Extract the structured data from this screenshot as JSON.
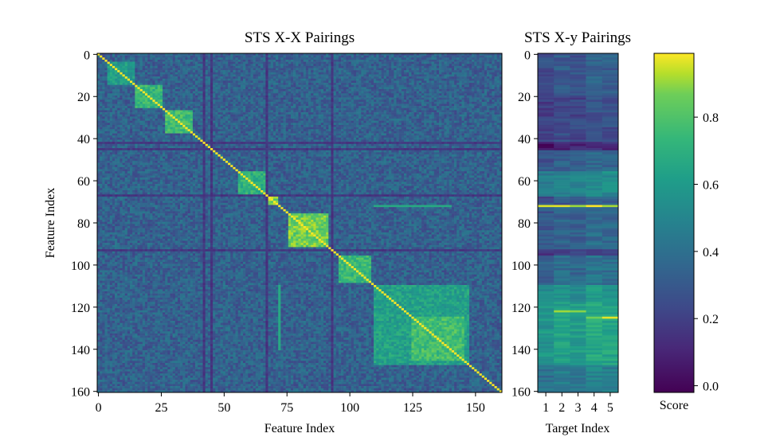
{
  "chart_data": [
    {
      "type": "heatmap",
      "title": "STS X-X Pairings",
      "xlabel": "Feature Index",
      "ylabel": "Feature Index",
      "xlim": [
        0,
        160
      ],
      "ylim": [
        160,
        0
      ],
      "x_ticks": [
        "0",
        "25",
        "50",
        "75",
        "100",
        "125",
        "150"
      ],
      "y_ticks": [
        "0",
        "20",
        "40",
        "60",
        "80",
        "100",
        "120",
        "140",
        "160"
      ],
      "n": 161,
      "diagonal_value": 1.0,
      "background_value": 0.35,
      "blocks": [
        {
          "start": 4,
          "end": 14,
          "value": 0.62
        },
        {
          "start": 15,
          "end": 25,
          "value": 0.74
        },
        {
          "start": 27,
          "end": 37,
          "value": 0.78
        },
        {
          "start": 56,
          "end": 66,
          "value": 0.72
        },
        {
          "start": 68,
          "end": 71,
          "value": 0.9
        },
        {
          "start": 76,
          "end": 91,
          "value": 0.86
        },
        {
          "start": 96,
          "end": 108,
          "value": 0.76
        },
        {
          "start": 110,
          "end": 147,
          "value": 0.64
        },
        {
          "start": 125,
          "end": 145,
          "value": 0.78
        }
      ],
      "dark_lines": [
        42,
        45,
        67,
        93
      ],
      "bright_columns": [
        {
          "index": 72,
          "start": 110,
          "end": 140,
          "value": 0.68
        }
      ]
    },
    {
      "type": "heatmap",
      "title": "STS X-y Pairings",
      "xlabel": "Target Index",
      "x_ticks": [
        "1",
        "2",
        "3",
        "4",
        "5"
      ],
      "y_ticks": [
        "0",
        "20",
        "40",
        "60",
        "80",
        "100",
        "120",
        "140",
        "160"
      ],
      "rows": 161,
      "cols": 5,
      "row_profile": [
        {
          "start": 0,
          "end": 20,
          "value": 0.3
        },
        {
          "start": 20,
          "end": 42,
          "value": 0.24
        },
        {
          "start": 42,
          "end": 46,
          "value": 0.1
        },
        {
          "start": 46,
          "end": 56,
          "value": 0.33
        },
        {
          "start": 56,
          "end": 68,
          "value": 0.5
        },
        {
          "start": 68,
          "end": 72,
          "value": 0.3
        },
        {
          "start": 72,
          "end": 73,
          "value": 0.95
        },
        {
          "start": 73,
          "end": 93,
          "value": 0.34
        },
        {
          "start": 93,
          "end": 96,
          "value": 0.2
        },
        {
          "start": 96,
          "end": 110,
          "value": 0.38
        },
        {
          "start": 110,
          "end": 118,
          "value": 0.55
        },
        {
          "start": 118,
          "end": 148,
          "value": 0.62
        },
        {
          "start": 148,
          "end": 161,
          "value": 0.45
        }
      ],
      "col_offsets": [
        -0.03,
        0.02,
        0.0,
        0.06,
        0.04
      ],
      "hot_cells": [
        {
          "row": 122,
          "col": 1,
          "value": 0.92
        },
        {
          "row": 122,
          "col": 2,
          "value": 0.9
        },
        {
          "row": 125,
          "col": 4,
          "value": 0.98
        },
        {
          "row": 125,
          "col": 3,
          "value": 0.88
        }
      ]
    },
    {
      "type": "colorbar",
      "label": "Score",
      "range": [
        -0.02,
        0.99
      ],
      "ticks": [
        "0.0",
        "0.2",
        "0.4",
        "0.6",
        "0.8"
      ],
      "colormap": "viridis"
    }
  ]
}
